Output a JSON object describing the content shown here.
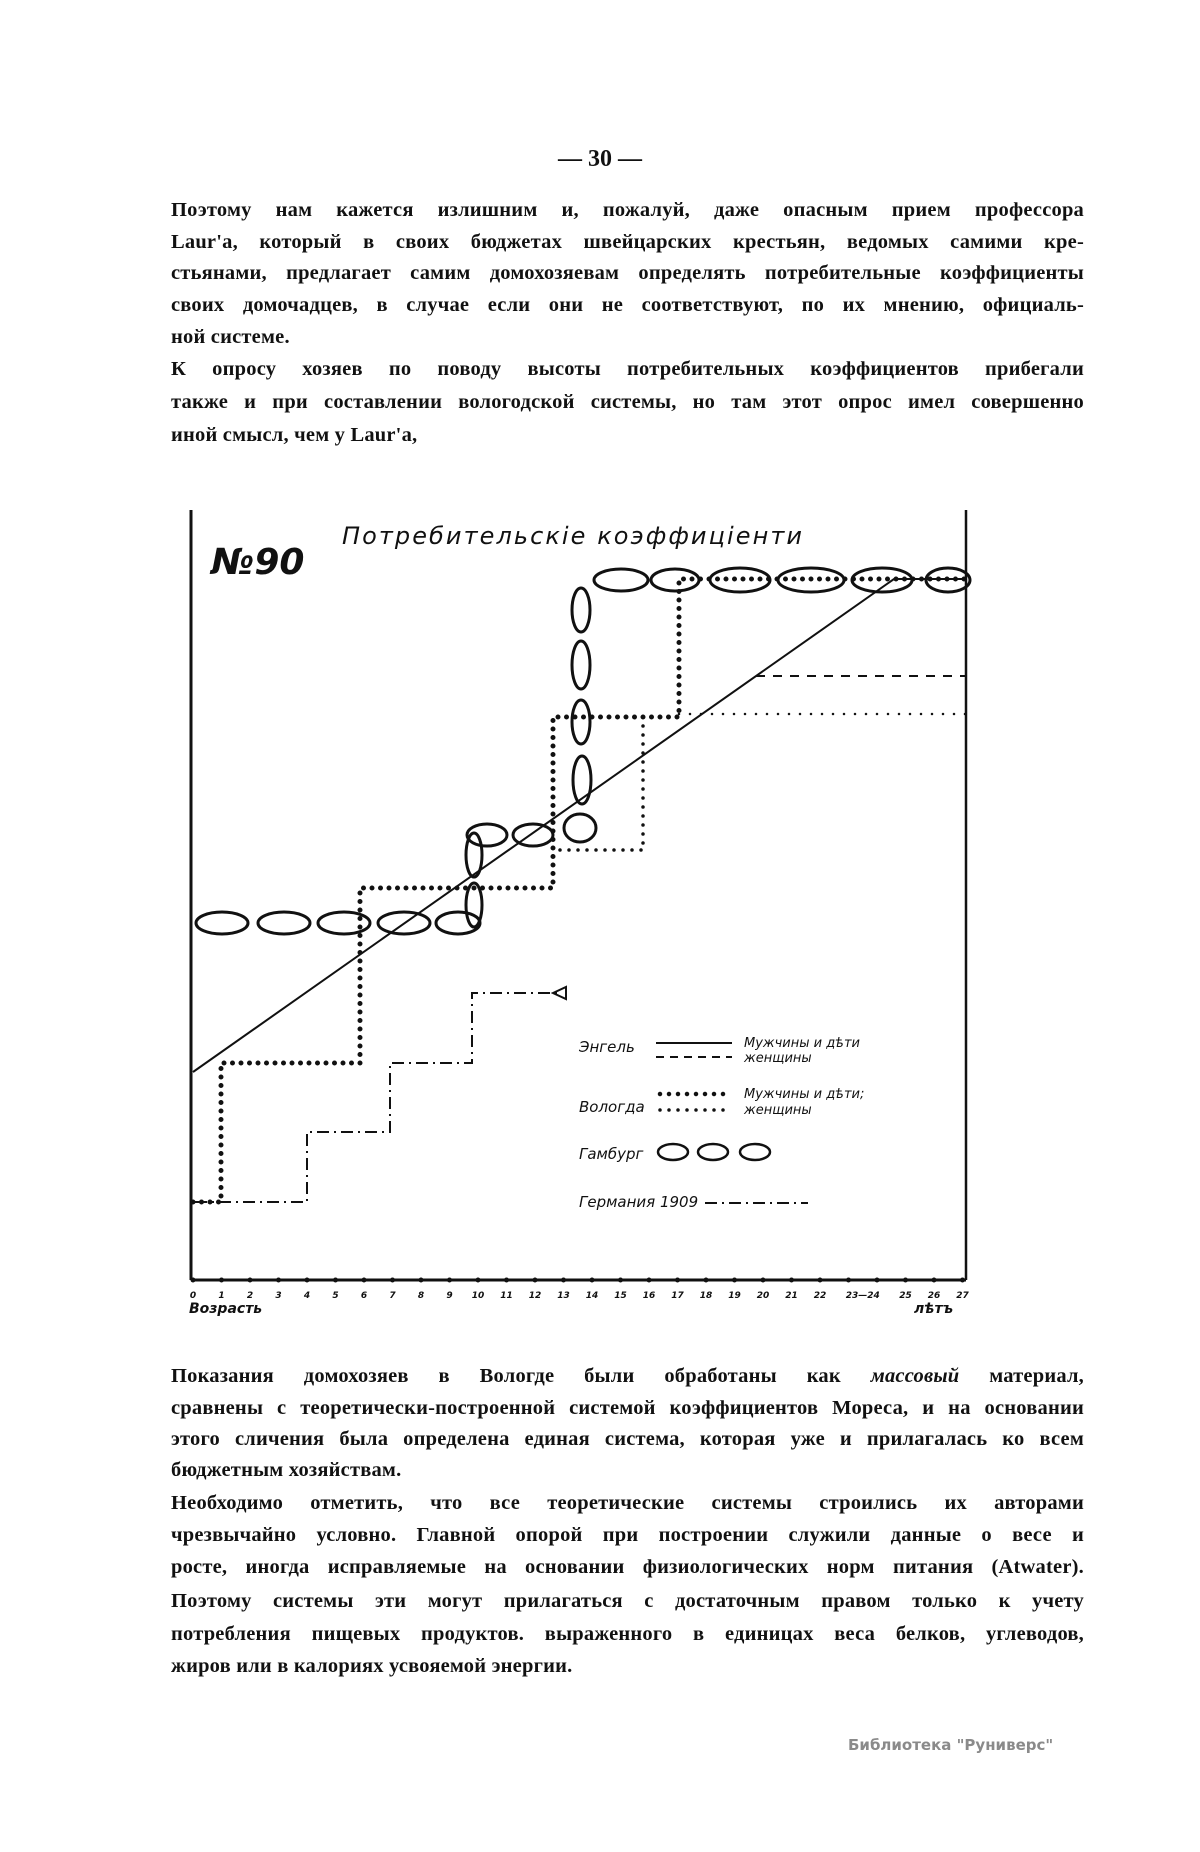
{
  "page_number": "— 30 —",
  "paragraphs_top": [
    "Поэтому нам кажется излишним и, пожалуй, даже опасным прием профессора",
    "Laur'a, который в своих бюджетах швейцарских крестьян, ведомых самими кре-",
    "стьянами, предлагает самим домохозяевам определять потребительные коэффициенты",
    "своих домочадцев, в случае если они не соответствуют, по их мнению, официаль-",
    "ной системе.",
    "К опросу хозяев по поводу высоты потребительных коэффициентов прибегали",
    "также и при составлении вологодской системы, но там этот опрос имел совершенно",
    "иной смысл, чем у Laur'a,"
  ],
  "paragraph3": {
    "line1_before": "Показания домохозяев в Вологде были обработаны как ",
    "line1_italic": "массовый",
    "line1_after": " материал,"
  },
  "paragraphs_bottom": [
    "сравнены с теоретически-построенной системой коэффициентов Мореса, и на основании",
    "этого сличения была определена единая система, которая уже и прилагалась ко всем",
    "бюджетным хозяйствам.",
    "Необходимо отметить, что все теоретические системы строились их авторами",
    "чрезвычайно условно. Главной опорой при построении служили данные о весе и",
    "росте, иногда исправляемые на основании физиологических норм питания (Atwater).",
    "Поэтому системы эти могут прилагаться с достаточным правом только к учету",
    "потребления пищевых продуктов. выраженного в единицах веса белков, углеводов,",
    "жиров или в калориях усвояемой энергии."
  ],
  "figure": {
    "number": "№90",
    "title": "Потребительскіе коэффиціенти",
    "x_axis_label": "Возрасть",
    "x_axis_unit": "лѣтъ",
    "x_tick_labels": [
      "0",
      "1",
      "2",
      "3",
      "4",
      "5",
      "6",
      "7",
      "8",
      "9",
      "10",
      "11",
      "12",
      "13",
      "14",
      "15",
      "16",
      "17",
      "18",
      "19",
      "20",
      "21",
      "22",
      "23—24",
      "25",
      "26",
      "27"
    ],
    "legend": {
      "engel": {
        "label": "Энгель",
        "men": "Мужчины и дѣти",
        "women": "женщины"
      },
      "vologda": {
        "label": "Вологда",
        "men": "Мужчины и дѣти;",
        "women": "женщины"
      },
      "hamburg": {
        "label": "Гамбург"
      },
      "germany": {
        "label": "Германия 1909"
      }
    }
  },
  "watermark": "Библиотека \"Руниверс\""
}
